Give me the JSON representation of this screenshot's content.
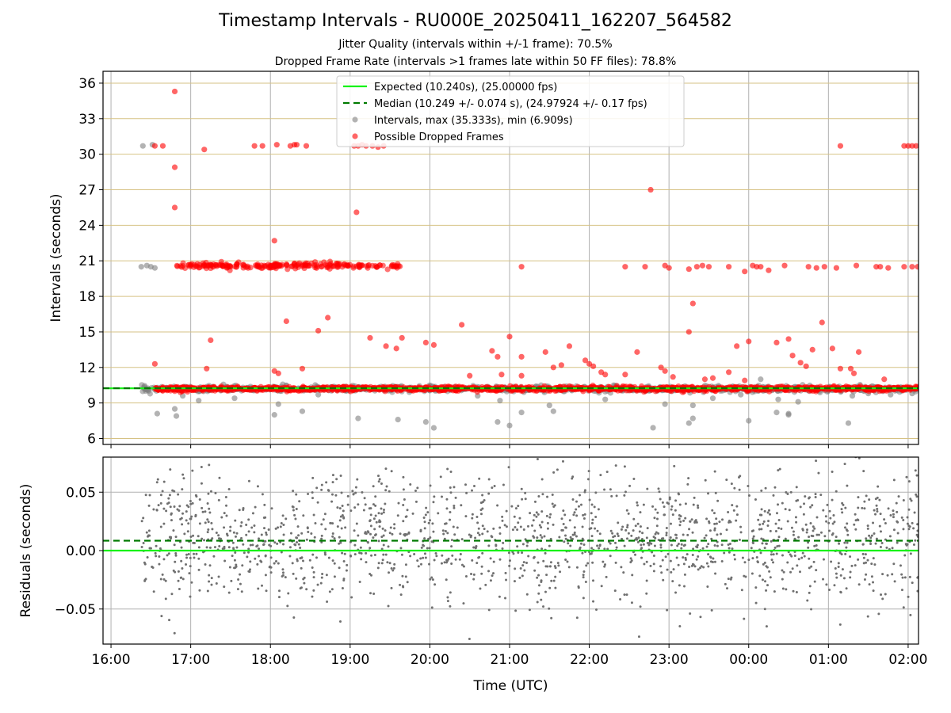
{
  "chart_data": [
    {
      "type": "scatter",
      "title": "Timestamp Intervals - RU000E_20250411_162207_564582",
      "subtitle_lines": [
        "Jitter Quality (intervals within +/-1 frame): 70.5%",
        "Dropped Frame Rate (intervals >1 frames late within 50 FF files): 78.8%"
      ],
      "xlabel": "",
      "ylabel": "Intervals (seconds)",
      "xlim_hours": [
        15.9,
        26.13
      ],
      "ylim": [
        5.5,
        37
      ],
      "yticks": [
        6,
        9,
        12,
        15,
        18,
        21,
        24,
        27,
        30,
        33,
        36
      ],
      "grid": "on",
      "legend_placement": "top-center",
      "legend": [
        "Expected (10.240s), (25.00000 fps)",
        "Median (10.249 +/- 0.074 s), (24.97924 +/- 0.17 fps)",
        "Intervals, max (35.333s), min (6.909s)",
        "Possible Dropped Frames"
      ],
      "expected_interval": 10.24,
      "median_interval": 10.249,
      "max_interval": 35.333,
      "min_interval": 6.909,
      "series": [
        {
          "name": "Intervals, max (35.333s), min (6.909s)",
          "points": [
            [
              16.4,
              30.7
            ],
            [
              16.52,
              30.8
            ],
            [
              16.38,
              20.5
            ],
            [
              16.45,
              20.6
            ],
            [
              16.5,
              20.5
            ],
            [
              16.55,
              20.4
            ],
            [
              16.58,
              8.1
            ],
            [
              16.8,
              8.5
            ],
            [
              16.82,
              7.9
            ],
            [
              16.9,
              9.6
            ],
            [
              17.1,
              9.2
            ],
            [
              17.55,
              9.4
            ],
            [
              18.05,
              8.0
            ],
            [
              18.1,
              8.9
            ],
            [
              18.4,
              8.3
            ],
            [
              18.6,
              9.7
            ],
            [
              19.1,
              7.7
            ],
            [
              19.6,
              7.6
            ],
            [
              19.95,
              7.4
            ],
            [
              20.05,
              6.9
            ],
            [
              20.6,
              9.6
            ],
            [
              20.85,
              7.4
            ],
            [
              20.88,
              9.2
            ],
            [
              21.0,
              7.1
            ],
            [
              21.15,
              8.2
            ],
            [
              21.5,
              8.8
            ],
            [
              21.55,
              8.3
            ],
            [
              22.2,
              9.3
            ],
            [
              22.8,
              6.91
            ],
            [
              22.95,
              8.9
            ],
            [
              23.25,
              7.3
            ],
            [
              23.3,
              7.7
            ],
            [
              23.3,
              8.8
            ],
            [
              23.55,
              9.4
            ],
            [
              23.9,
              9.7
            ],
            [
              24.0,
              7.5
            ],
            [
              24.15,
              11.0
            ],
            [
              24.35,
              8.2
            ],
            [
              24.37,
              9.3
            ],
            [
              24.5,
              8.0
            ],
            [
              24.5,
              8.1
            ],
            [
              24.62,
              9.1
            ],
            [
              25.25,
              7.3
            ],
            [
              25.3,
              9.6
            ],
            [
              25.45,
              10.0
            ],
            [
              25.5,
              9.8
            ],
            [
              25.78,
              9.7
            ],
            [
              26.05,
              9.8
            ]
          ]
        },
        {
          "name": "Possible Dropped Frames",
          "points": [
            [
              16.55,
              30.7
            ],
            [
              16.65,
              30.7
            ],
            [
              16.8,
              35.3
            ],
            [
              16.8,
              28.9
            ],
            [
              16.8,
              25.5
            ],
            [
              17.17,
              30.4
            ],
            [
              17.8,
              30.7
            ],
            [
              17.9,
              30.7
            ],
            [
              18.08,
              30.8
            ],
            [
              18.25,
              30.7
            ],
            [
              18.3,
              30.8
            ],
            [
              18.33,
              30.8
            ],
            [
              18.45,
              30.7
            ],
            [
              19.05,
              30.7
            ],
            [
              19.1,
              30.7
            ],
            [
              19.15,
              30.8
            ],
            [
              19.2,
              30.7
            ],
            [
              19.28,
              30.7
            ],
            [
              19.35,
              30.6
            ],
            [
              19.42,
              30.7
            ],
            [
              19.08,
              25.1
            ],
            [
              18.05,
              22.7
            ],
            [
              16.55,
              12.3
            ],
            [
              17.25,
              14.3
            ],
            [
              17.2,
              11.9
            ],
            [
              18.2,
              15.9
            ],
            [
              18.6,
              15.1
            ],
            [
              18.72,
              16.2
            ],
            [
              18.05,
              11.7
            ],
            [
              18.1,
              11.5
            ],
            [
              18.4,
              11.9
            ],
            [
              19.25,
              14.5
            ],
            [
              19.45,
              13.8
            ],
            [
              19.58,
              13.6
            ],
            [
              19.65,
              14.5
            ],
            [
              19.95,
              14.1
            ],
            [
              20.05,
              13.9
            ],
            [
              20.4,
              15.6
            ],
            [
              20.5,
              11.3
            ],
            [
              20.78,
              13.4
            ],
            [
              20.85,
              12.9
            ],
            [
              20.9,
              11.4
            ],
            [
              21.0,
              14.6
            ],
            [
              21.15,
              11.3
            ],
            [
              21.15,
              12.9
            ],
            [
              21.45,
              13.3
            ],
            [
              21.55,
              12.0
            ],
            [
              21.65,
              12.2
            ],
            [
              21.75,
              13.8
            ],
            [
              21.95,
              12.6
            ],
            [
              22.0,
              12.3
            ],
            [
              22.05,
              12.1
            ],
            [
              22.15,
              11.6
            ],
            [
              22.2,
              11.4
            ],
            [
              22.45,
              11.4
            ],
            [
              22.6,
              13.3
            ],
            [
              22.77,
              27.0
            ],
            [
              22.9,
              12.0
            ],
            [
              22.95,
              11.7
            ],
            [
              23.05,
              11.2
            ],
            [
              23.25,
              15.0
            ],
            [
              23.3,
              17.4
            ],
            [
              23.45,
              11.0
            ],
            [
              23.55,
              11.1
            ],
            [
              23.75,
              11.6
            ],
            [
              23.85,
              13.8
            ],
            [
              23.95,
              10.9
            ],
            [
              24.0,
              14.2
            ],
            [
              24.35,
              14.1
            ],
            [
              24.5,
              14.4
            ],
            [
              24.55,
              13.0
            ],
            [
              24.65,
              12.4
            ],
            [
              24.72,
              12.1
            ],
            [
              24.8,
              13.5
            ],
            [
              24.92,
              15.8
            ],
            [
              25.05,
              13.6
            ],
            [
              25.15,
              11.9
            ],
            [
              25.28,
              11.9
            ],
            [
              25.32,
              11.5
            ],
            [
              25.38,
              13.3
            ],
            [
              25.7,
              11.0
            ],
            [
              25.15,
              30.7
            ],
            [
              25.95,
              30.7
            ],
            [
              26.0,
              30.7
            ],
            [
              26.05,
              30.7
            ],
            [
              26.1,
              30.7
            ],
            [
              21.15,
              20.5
            ],
            [
              22.45,
              20.5
            ],
            [
              22.7,
              20.5
            ],
            [
              22.95,
              20.6
            ],
            [
              23.0,
              20.4
            ],
            [
              23.25,
              20.3
            ],
            [
              23.35,
              20.5
            ],
            [
              23.42,
              20.6
            ],
            [
              23.5,
              20.5
            ],
            [
              23.75,
              20.5
            ],
            [
              23.95,
              20.1
            ],
            [
              24.05,
              20.6
            ],
            [
              24.1,
              20.5
            ],
            [
              24.15,
              20.5
            ],
            [
              24.25,
              20.2
            ],
            [
              24.45,
              20.6
            ],
            [
              24.75,
              20.5
            ],
            [
              24.85,
              20.4
            ],
            [
              24.95,
              20.5
            ],
            [
              25.1,
              20.4
            ],
            [
              25.35,
              20.6
            ],
            [
              25.6,
              20.5
            ],
            [
              25.65,
              20.5
            ],
            [
              25.75,
              20.4
            ],
            [
              25.95,
              20.5
            ],
            [
              26.05,
              20.5
            ],
            [
              26.12,
              20.5
            ]
          ]
        }
      ]
    },
    {
      "type": "scatter",
      "title": "",
      "xlabel": "Time (UTC)",
      "ylabel": "Residuals (seconds)",
      "xlim_hours": [
        15.9,
        26.13
      ],
      "ylim": [
        -0.08,
        0.08
      ],
      "yticks": [
        -0.05,
        0.0,
        0.05
      ],
      "ytick_labels": [
        "−0.05",
        "0.00",
        "0.05"
      ],
      "xtick_labels": [
        "16:00",
        "17:00",
        "18:00",
        "19:00",
        "20:00",
        "21:00",
        "22:00",
        "23:00",
        "00:00",
        "01:00",
        "02:00"
      ],
      "xtick_hours": [
        16,
        17,
        18,
        19,
        20,
        21,
        22,
        23,
        24,
        25,
        26
      ],
      "grid": "on",
      "expected_residual": 0.0,
      "median_residual": 0.0085,
      "residual_spread_sd": 0.028,
      "data_span_hours": [
        16.38,
        26.13
      ]
    }
  ],
  "colors": {
    "expected_line": "#17f217",
    "median_line": "#007a00",
    "intervals": "#808080",
    "dropped": "#ff0000",
    "residual_points": "#707070",
    "grid": "#b0b0b0",
    "grid_gold": "#d6c284"
  }
}
